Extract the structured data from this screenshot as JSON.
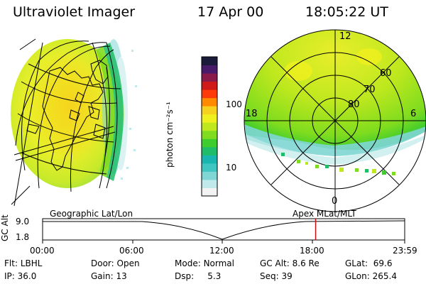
{
  "header": {
    "title": "Ultraviolet Imager",
    "date": "17 Apr 00",
    "time": "18:05:22 UT"
  },
  "colorbar": {
    "unit_label": "photon cm⁻²s⁻¹",
    "tick_100": "100",
    "tick_10": "10",
    "scale": "log",
    "colors": [
      "#f2f2f2",
      "#bfe9ea",
      "#7fd6d4",
      "#3fc6c2",
      "#19b6b0",
      "#1fbd6a",
      "#3fcc2e",
      "#7fdc1e",
      "#bfe81e",
      "#f0f01e",
      "#f6d21e",
      "#ff8a00",
      "#ff3a0a",
      "#d01a1a",
      "#8a1a4a",
      "#4a1a6a",
      "#1a1a3a"
    ]
  },
  "polar": {
    "lat_labels": [
      "60",
      "70",
      "80"
    ],
    "mlt_labels": {
      "top": "12",
      "left": "18",
      "right": "6",
      "bottom": "0"
    }
  },
  "timeline": {
    "left_caption": "Geographic Lat/Lon",
    "right_caption": "Apex  MLat/MLT",
    "yaxis_title": "GC Alt",
    "y_ticks": [
      "9.0",
      "1.8"
    ],
    "x_ticks": [
      "00:00",
      "06:00",
      "12:00",
      "18:00",
      "23:59"
    ],
    "current_time_fraction": 0.754,
    "marker_color": "#d01010"
  },
  "info": {
    "row1": [
      {
        "label": "Flt:",
        "value": "LBHL"
      },
      {
        "label": "Door:",
        "value": "Open"
      },
      {
        "label": "Mode:",
        "value": "Normal"
      },
      {
        "label": "GC Alt:",
        "value": "8.6 Re"
      },
      {
        "label": "GLat:",
        "value": "69.6"
      }
    ],
    "row2": [
      {
        "label": "IP:",
        "value": "36.0"
      },
      {
        "label": "Gain:",
        "value": "13"
      },
      {
        "label": "Dsp:",
        "value": "5.3"
      },
      {
        "label": "Seq:",
        "value": "39"
      },
      {
        "label": "GLon:",
        "value": "265.4"
      }
    ]
  }
}
